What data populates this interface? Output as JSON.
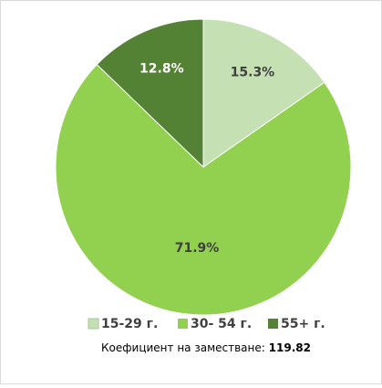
{
  "chart_data": {
    "type": "pie",
    "categories": [
      "15-29 г.",
      "30- 54 г.",
      "55+ г."
    ],
    "series": [
      {
        "values": [
          15.3,
          71.9,
          12.8
        ],
        "value_labels": [
          "15.3%",
          "71.9%",
          "12.8%"
        ]
      }
    ],
    "colors": [
      "#c5e0b3",
      "#92d050",
      "#548235"
    ],
    "label_colors": [
      "#404040",
      "#404040",
      "#ffffff"
    ],
    "annotation": {
      "text": "Коефициент на заместване:",
      "value": 119.82
    }
  }
}
